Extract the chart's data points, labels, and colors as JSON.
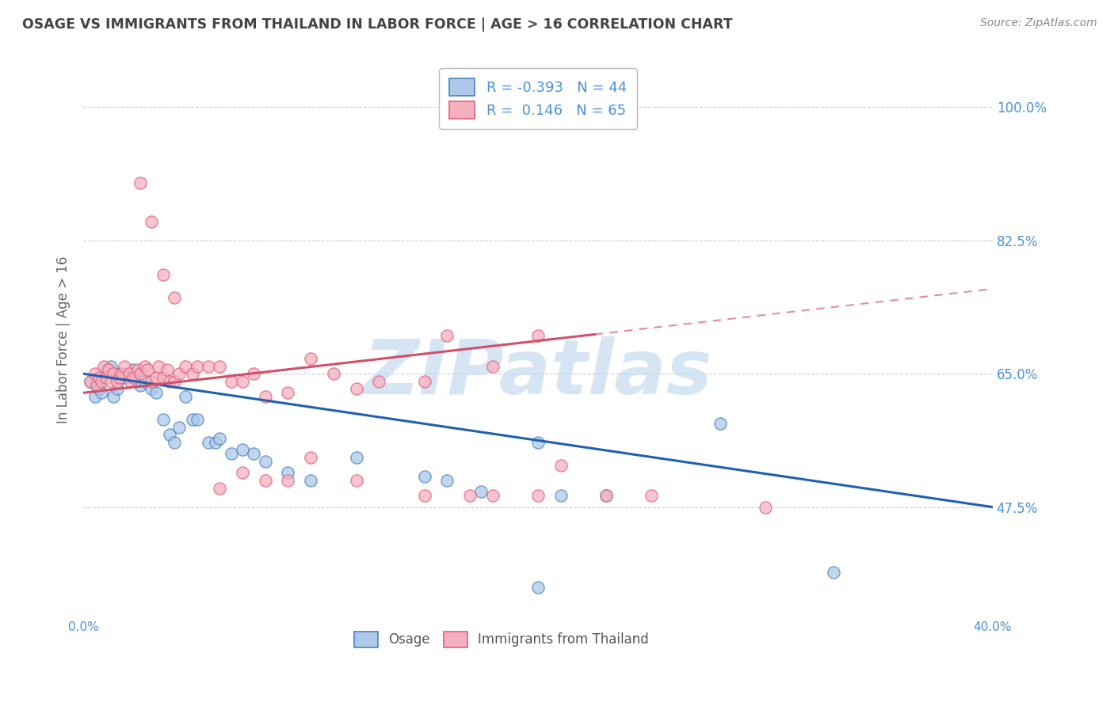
{
  "title": "OSAGE VS IMMIGRANTS FROM THAILAND IN LABOR FORCE | AGE > 16 CORRELATION CHART",
  "source": "Source: ZipAtlas.com",
  "ylabel": "In Labor Force | Age > 16",
  "xlim": [
    0.0,
    0.4
  ],
  "ylim": [
    0.33,
    1.06
  ],
  "yticks": [
    0.475,
    0.65,
    0.825,
    1.0
  ],
  "ytick_labels": [
    "47.5%",
    "65.0%",
    "82.5%",
    "100.0%"
  ],
  "xticks": [
    0.0,
    0.08,
    0.16,
    0.24,
    0.32,
    0.4
  ],
  "osage_fill_color": "#adc8e8",
  "osage_edge_color": "#4a82c4",
  "thailand_fill_color": "#f5b0c0",
  "thailand_edge_color": "#e0607a",
  "osage_line_color": "#2060b0",
  "thailand_line_color": "#d0506a",
  "osage_R": -0.393,
  "osage_N": 44,
  "thailand_R": 0.146,
  "thailand_N": 65,
  "background_color": "#ffffff",
  "grid_color": "#cccccc",
  "watermark_text": "ZIPatlas",
  "watermark_color": "#c5daf0",
  "legend_text_color": "#4a90d9",
  "title_color": "#444444",
  "source_color": "#888888",
  "axis_label_color": "#666666",
  "tick_label_color": "#4a90d9",
  "bottom_legend_color": "#555555",
  "osage_scatter_x": [
    0.003,
    0.005,
    0.006,
    0.007,
    0.008,
    0.01,
    0.012,
    0.013,
    0.015,
    0.016,
    0.018,
    0.02,
    0.022,
    0.024,
    0.025,
    0.027,
    0.03,
    0.032,
    0.035,
    0.038,
    0.04,
    0.042,
    0.045,
    0.048,
    0.05,
    0.055,
    0.058,
    0.06,
    0.065,
    0.07,
    0.075,
    0.08,
    0.09,
    0.1,
    0.12,
    0.15,
    0.16,
    0.175,
    0.2,
    0.21,
    0.23,
    0.28,
    0.33,
    0.2
  ],
  "osage_scatter_y": [
    0.64,
    0.62,
    0.635,
    0.63,
    0.625,
    0.655,
    0.66,
    0.62,
    0.63,
    0.65,
    0.645,
    0.65,
    0.655,
    0.64,
    0.635,
    0.64,
    0.63,
    0.625,
    0.59,
    0.57,
    0.56,
    0.58,
    0.62,
    0.59,
    0.59,
    0.56,
    0.56,
    0.565,
    0.545,
    0.55,
    0.545,
    0.535,
    0.52,
    0.51,
    0.54,
    0.515,
    0.51,
    0.495,
    0.56,
    0.49,
    0.49,
    0.585,
    0.39,
    0.37
  ],
  "thailand_scatter_x": [
    0.003,
    0.005,
    0.006,
    0.007,
    0.008,
    0.009,
    0.01,
    0.011,
    0.012,
    0.013,
    0.015,
    0.016,
    0.017,
    0.018,
    0.02,
    0.021,
    0.022,
    0.024,
    0.025,
    0.027,
    0.028,
    0.03,
    0.032,
    0.033,
    0.035,
    0.037,
    0.038,
    0.04,
    0.042,
    0.045,
    0.048,
    0.05,
    0.055,
    0.06,
    0.065,
    0.07,
    0.075,
    0.08,
    0.09,
    0.1,
    0.11,
    0.12,
    0.13,
    0.15,
    0.16,
    0.18,
    0.2,
    0.21,
    0.23,
    0.06,
    0.07,
    0.08,
    0.09,
    0.1,
    0.12,
    0.15,
    0.17,
    0.18,
    0.2,
    0.25,
    0.3,
    0.025,
    0.03,
    0.035,
    0.04
  ],
  "thailand_scatter_y": [
    0.64,
    0.65,
    0.635,
    0.645,
    0.64,
    0.66,
    0.645,
    0.655,
    0.64,
    0.65,
    0.64,
    0.645,
    0.65,
    0.66,
    0.65,
    0.64,
    0.645,
    0.655,
    0.65,
    0.66,
    0.655,
    0.64,
    0.645,
    0.66,
    0.645,
    0.655,
    0.64,
    0.64,
    0.65,
    0.66,
    0.65,
    0.66,
    0.66,
    0.66,
    0.64,
    0.64,
    0.65,
    0.62,
    0.625,
    0.67,
    0.65,
    0.63,
    0.64,
    0.64,
    0.7,
    0.66,
    0.49,
    0.53,
    0.49,
    0.5,
    0.52,
    0.51,
    0.51,
    0.54,
    0.51,
    0.49,
    0.49,
    0.49,
    0.7,
    0.49,
    0.475,
    0.9,
    0.85,
    0.78,
    0.75
  ]
}
